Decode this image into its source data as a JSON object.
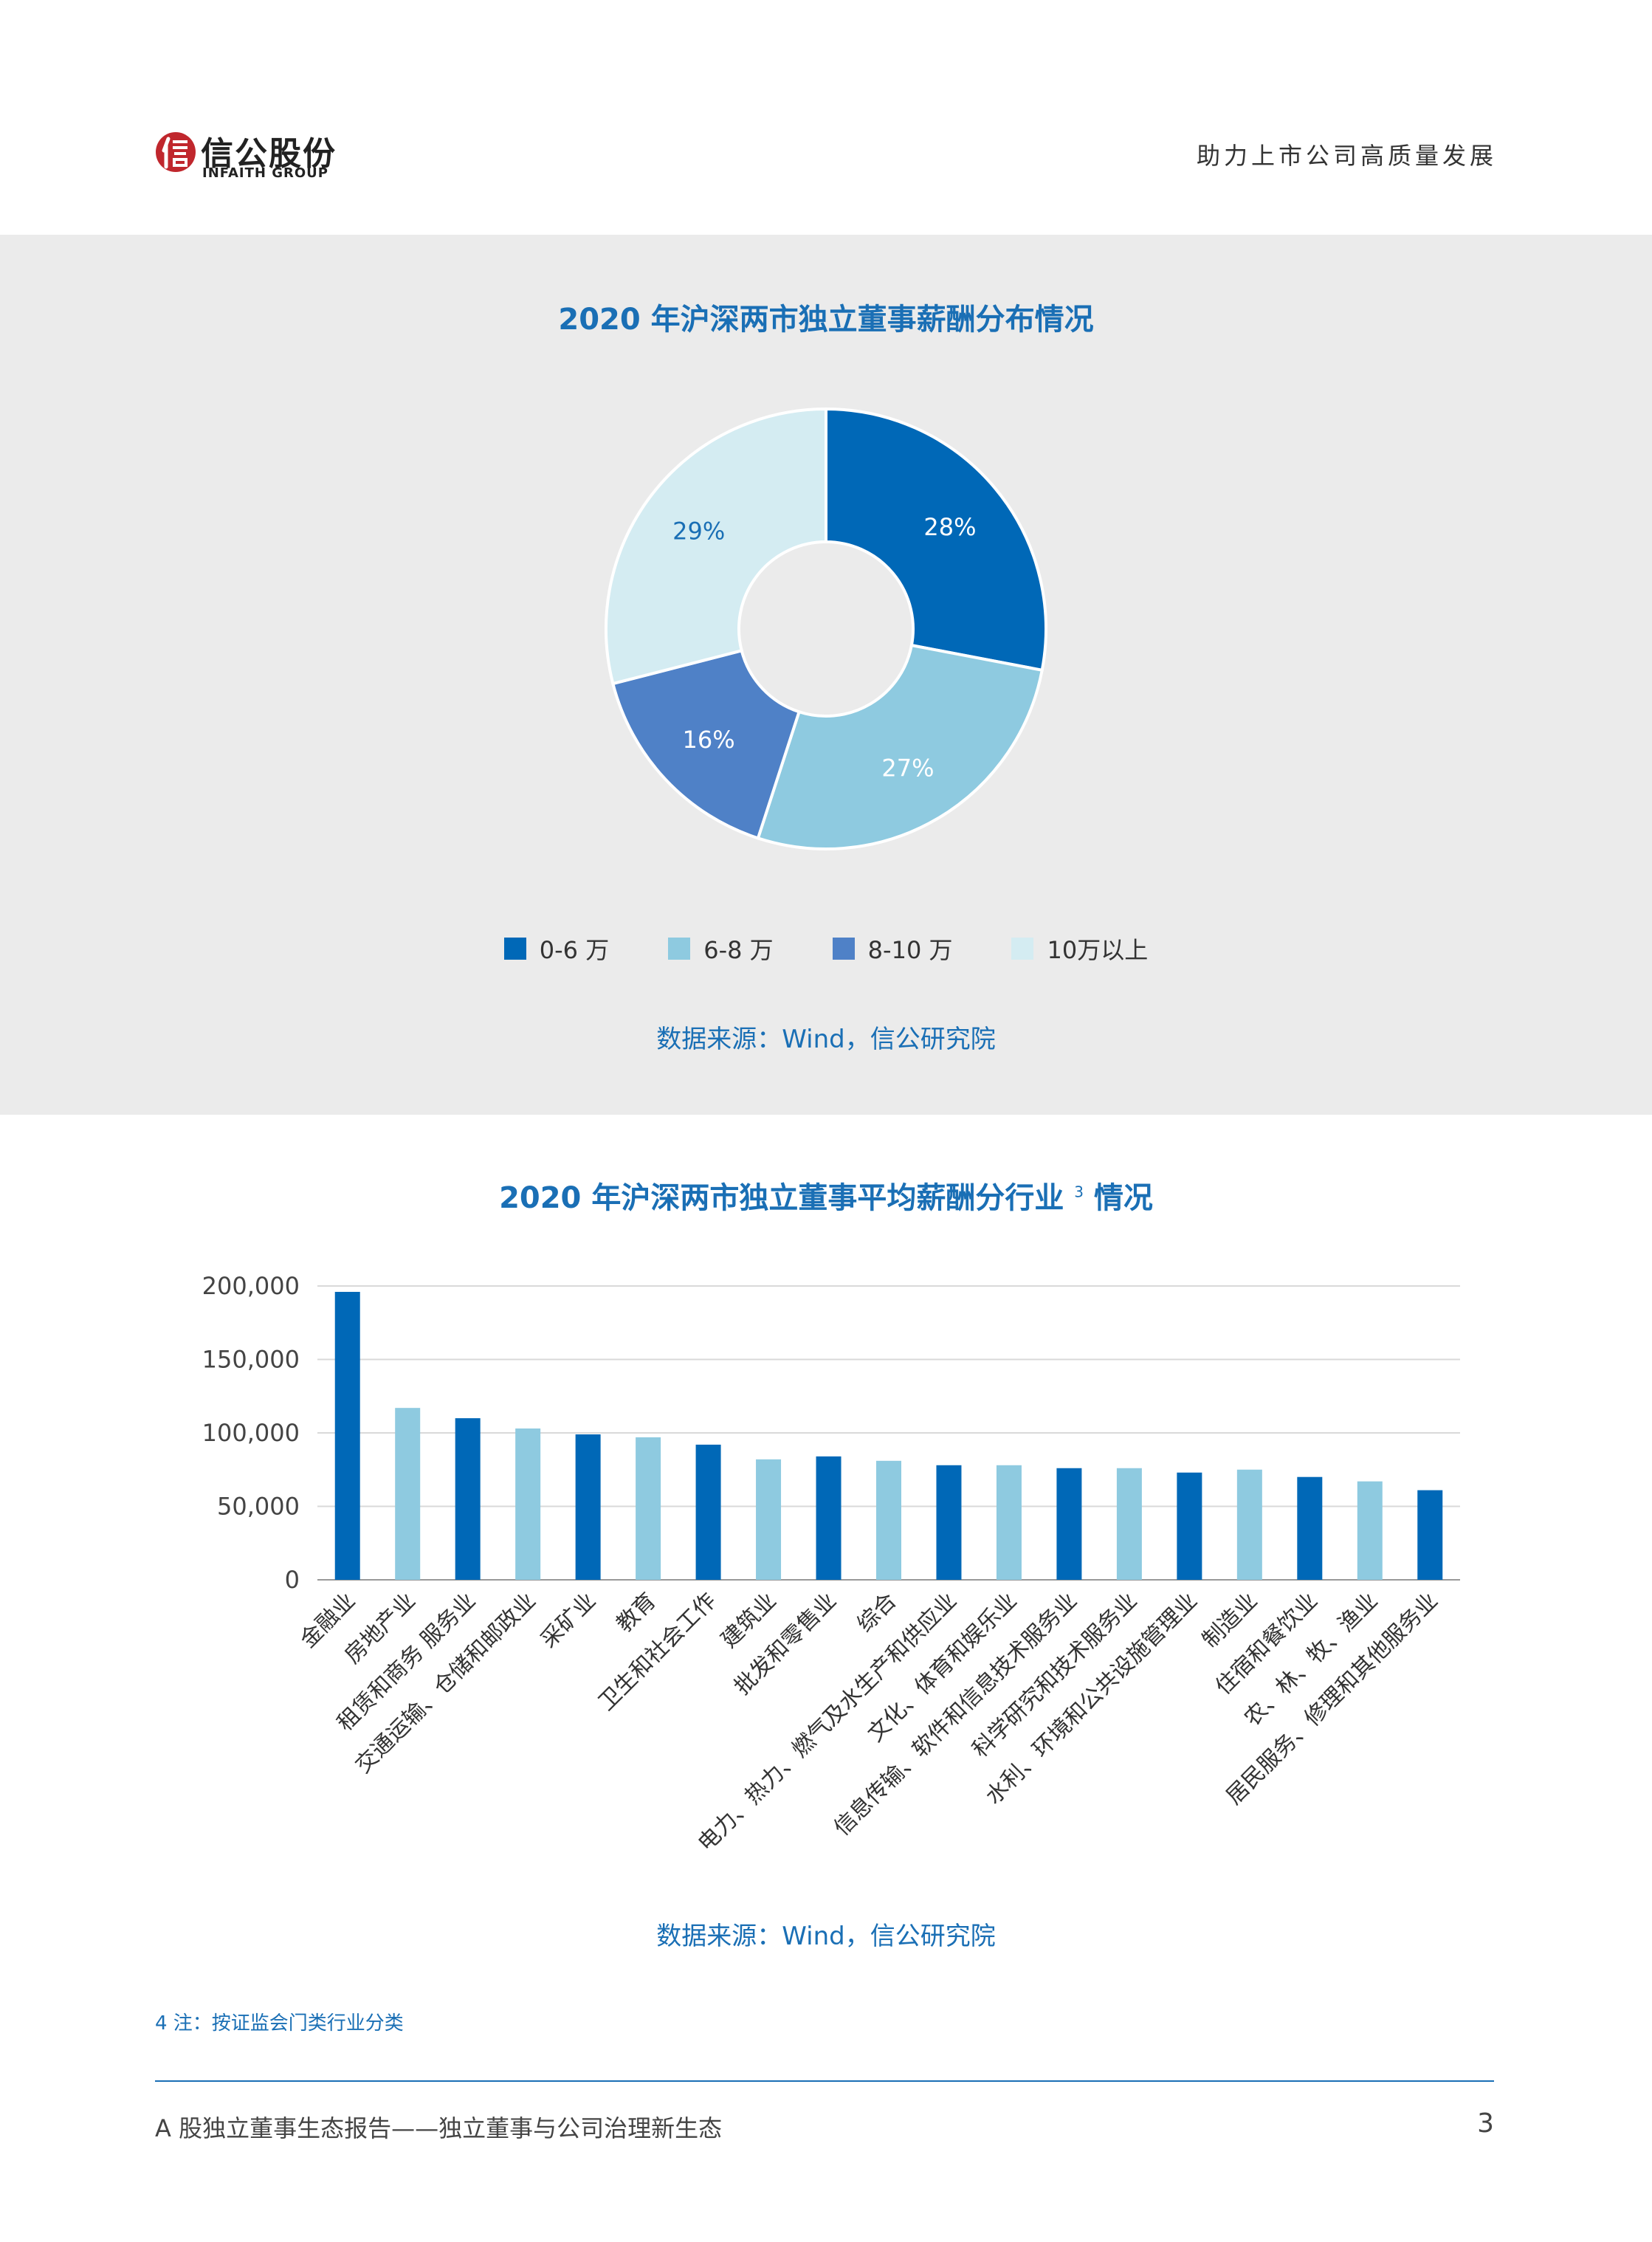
{
  "header": {
    "logo_text": "信公股份",
    "logo_sub": "INFAITH GROUP",
    "tagline": "助力上市公司高质量发展"
  },
  "colors": {
    "primary": "#0068b7",
    "light": "#8ecae0",
    "mid": "#4f81c7",
    "pale": "#d4ecf2",
    "accent_red": "#c0272d",
    "title_blue": "#1a6fb5"
  },
  "pie_chart": {
    "title": "2020 年沪深两市独立董事薪酬分布情况",
    "source": "数据来源：Wind，信公研究院",
    "chart_data": {
      "type": "pie",
      "title": "2020 年沪深两市独立董事薪酬分布情况",
      "categories": [
        "0-6 万",
        "6-8 万",
        "8-10 万",
        "10万以上"
      ],
      "values": [
        28,
        27,
        16,
        29
      ],
      "labels": [
        "28%",
        "27%",
        "16%",
        "29%"
      ],
      "colors": [
        "#0068b7",
        "#8ecae0",
        "#4f81c7",
        "#d4ecf2"
      ],
      "donut": true,
      "legend_position": "bottom"
    }
  },
  "bar_chart": {
    "title": "2020 年沪深两市独立董事平均薪酬分行业",
    "title_sup": "3",
    "title_suffix": "情况",
    "source": "数据来源：Wind，信公研究院",
    "chart_data": {
      "type": "bar",
      "categories": [
        "金融业",
        "房地产业",
        "租赁和商务 服务业",
        "交通运输、仓储和邮政业",
        "采矿业",
        "教育",
        "卫生和社会工作",
        "建筑业",
        "批发和零售业",
        "综合",
        "电力、热力、燃气及水生产和供应业",
        "文化、体育和娱乐业",
        "信息传输、软件和信息技术服务业",
        "科学研究和技术服务业",
        "水利、环境和公共设施管理业",
        "制造业",
        "住宿和餐饮业",
        "农、林、牧、渔业",
        "居民服务、修理和其他服务业"
      ],
      "values": [
        196000,
        117000,
        110000,
        103000,
        99000,
        97000,
        92000,
        82000,
        84000,
        81000,
        78000,
        78000,
        76000,
        76000,
        73000,
        75000,
        70000,
        67000,
        61000
      ],
      "bar_colors": [
        "#0068b7",
        "#8ecae0",
        "#0068b7",
        "#8ecae0",
        "#0068b7",
        "#8ecae0",
        "#0068b7",
        "#8ecae0",
        "#0068b7",
        "#8ecae0",
        "#0068b7",
        "#8ecae0",
        "#0068b7",
        "#8ecae0",
        "#0068b7",
        "#8ecae0",
        "#0068b7",
        "#8ecae0",
        "#0068b7"
      ],
      "ylim": [
        0,
        200000
      ],
      "yticks": [
        "0",
        "50,000",
        "100,000",
        "150,000",
        "200,000"
      ],
      "ytick_values": [
        0,
        50000,
        100000,
        150000,
        200000
      ],
      "grid": true
    }
  },
  "footnote": "4 注：按证监会门类行业分类",
  "footer": {
    "report_title": "A 股独立董事生态报告——独立董事与公司治理新生态",
    "page_number": "3"
  }
}
